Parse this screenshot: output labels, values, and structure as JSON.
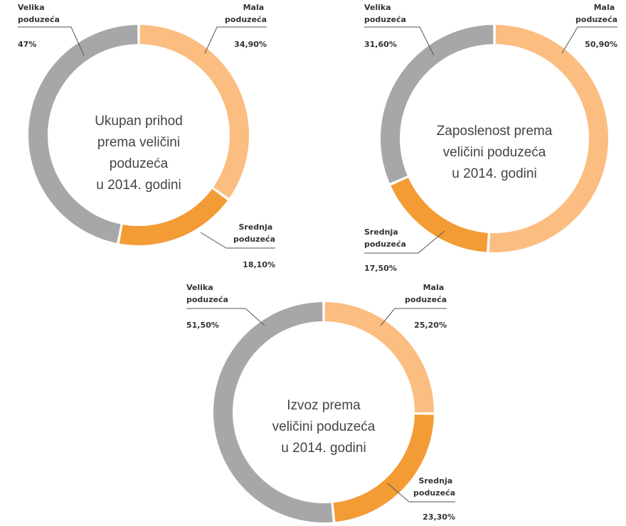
{
  "chart_data": [
    {
      "type": "donut",
      "title": [
        "Ukupan prihod",
        "prema veličini",
        "poduzeća",
        "u 2014. godini"
      ],
      "categories": [
        "Mala poduzeća",
        "Srednja poduzeća",
        "Velika poduzeća"
      ],
      "values": [
        34.9,
        18.1,
        47
      ],
      "value_labels": [
        "34,90%",
        "18,10%",
        "47%"
      ],
      "colors": [
        "#fbbd80",
        "#f39b35",
        "#a7a7a9"
      ]
    },
    {
      "type": "donut",
      "title": [
        "Zaposlenost prema",
        "veličini poduzeća",
        "u 2014. godini"
      ],
      "categories": [
        "Mala poduzeća",
        "Srednja poduzeća",
        "Velika poduzeća"
      ],
      "values": [
        50.9,
        17.5,
        31.6
      ],
      "value_labels": [
        "50,90%",
        "17,50%",
        "31,60%"
      ],
      "colors": [
        "#fbbd80",
        "#f39b35",
        "#a7a7a9"
      ]
    },
    {
      "type": "donut",
      "title": [
        "Izvoz prema",
        "veličini poduzeća",
        "u 2014. godini"
      ],
      "categories": [
        "Mala poduzeća",
        "Srednja poduzeća",
        "Velika poduzeća"
      ],
      "values": [
        25.2,
        23.3,
        51.5
      ],
      "value_labels": [
        "25,20%",
        "23,30%",
        "51,50%"
      ],
      "colors": [
        "#fbbd80",
        "#f39b35",
        "#a7a7a9"
      ]
    }
  ]
}
